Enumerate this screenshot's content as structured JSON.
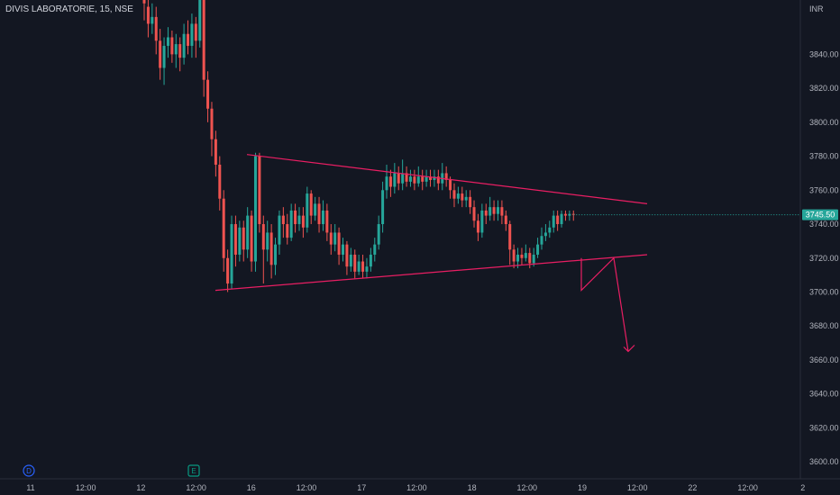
{
  "header": {
    "symbol_title": "DIVIS LABORATORIE, 15, NSE"
  },
  "price_axis": {
    "currency": "INR",
    "last_price_label": "3745.50"
  },
  "event_markers": [
    {
      "label": "D",
      "color": "#2962ff"
    },
    {
      "label": "E",
      "color": "#089981"
    }
  ],
  "colors": {
    "background": "#131722",
    "up": "#26a69a",
    "down": "#ef5350",
    "drawing": "#e91e63",
    "last_price_bg": "#26a69a"
  },
  "chart_data": {
    "type": "candlestick",
    "ylim": [
      3590,
      3872
    ],
    "y_ticks": [
      "3840.00",
      "3820.00",
      "3800.00",
      "3780.00",
      "3760.00",
      "3740.00",
      "3720.00",
      "3700.00",
      "3680.00",
      "3660.00",
      "3640.00",
      "3620.00",
      "3600.00"
    ],
    "x_ticks": [
      "11",
      "12:00",
      "12",
      "12:00",
      "16",
      "12:00",
      "17",
      "12:00",
      "18",
      "12:00",
      "19",
      "12:00",
      "22",
      "12:00",
      "2"
    ],
    "drawings": [
      {
        "name": "upper-trendline",
        "from": [
          3781,
          0
        ],
        "to": [
          3752,
          1
        ]
      },
      {
        "name": "lower-trendline",
        "from": [
          3701,
          0
        ],
        "to": [
          3722,
          1
        ]
      },
      {
        "name": "projection-arrow",
        "points": [
          3720,
          3701,
          3720,
          3665
        ]
      }
    ],
    "last_price": 3745.5,
    "candles": [
      [
        3925,
        3870,
        3935,
        3860
      ],
      [
        3868,
        3858,
        3878,
        3850
      ],
      [
        3858,
        3862,
        3870,
        3852
      ],
      [
        3862,
        3848,
        3868,
        3840
      ],
      [
        3848,
        3832,
        3855,
        3825
      ],
      [
        3832,
        3845,
        3850,
        3822
      ],
      [
        3845,
        3850,
        3856,
        3838
      ],
      [
        3850,
        3840,
        3854,
        3835
      ],
      [
        3840,
        3846,
        3852,
        3832
      ],
      [
        3846,
        3838,
        3850,
        3830
      ],
      [
        3838,
        3852,
        3858,
        3834
      ],
      [
        3852,
        3845,
        3860,
        3840
      ],
      [
        3845,
        3858,
        3864,
        3838
      ],
      [
        3858,
        3848,
        3862,
        3838
      ],
      [
        3848,
        3872,
        3878,
        3844
      ],
      [
        3872,
        3825,
        3872,
        3815
      ],
      [
        3825,
        3808,
        3830,
        3800
      ],
      [
        3808,
        3790,
        3812,
        3780
      ],
      [
        3790,
        3775,
        3795,
        3768
      ],
      [
        3775,
        3755,
        3780,
        3748
      ],
      [
        3755,
        3720,
        3760,
        3712
      ],
      [
        3720,
        3705,
        3725,
        3700
      ],
      [
        3705,
        3740,
        3745,
        3702
      ],
      [
        3740,
        3722,
        3745,
        3715
      ],
      [
        3722,
        3738,
        3742,
        3718
      ],
      [
        3738,
        3725,
        3742,
        3718
      ],
      [
        3725,
        3745,
        3750,
        3720
      ],
      [
        3745,
        3718,
        3748,
        3712
      ],
      [
        3718,
        3780,
        3782,
        3712
      ],
      [
        3780,
        3740,
        3782,
        3735
      ],
      [
        3740,
        3725,
        3745,
        3705
      ],
      [
        3725,
        3735,
        3742,
        3718
      ],
      [
        3735,
        3716,
        3740,
        3708
      ],
      [
        3716,
        3728,
        3732,
        3710
      ],
      [
        3728,
        3745,
        3748,
        3722
      ],
      [
        3745,
        3740,
        3750,
        3732
      ],
      [
        3740,
        3732,
        3746,
        3728
      ],
      [
        3732,
        3748,
        3752,
        3730
      ],
      [
        3748,
        3740,
        3752,
        3735
      ],
      [
        3740,
        3745,
        3750,
        3736
      ],
      [
        3745,
        3738,
        3750,
        3732
      ],
      [
        3738,
        3758,
        3762,
        3735
      ],
      [
        3758,
        3745,
        3760,
        3740
      ],
      [
        3745,
        3752,
        3756,
        3742
      ],
      [
        3752,
        3740,
        3756,
        3735
      ],
      [
        3740,
        3748,
        3754,
        3736
      ],
      [
        3748,
        3735,
        3752,
        3730
      ],
      [
        3735,
        3728,
        3740,
        3722
      ],
      [
        3728,
        3735,
        3740,
        3724
      ],
      [
        3735,
        3722,
        3738,
        3716
      ],
      [
        3722,
        3728,
        3732,
        3718
      ],
      [
        3728,
        3715,
        3730,
        3710
      ],
      [
        3715,
        3722,
        3726,
        3712
      ],
      [
        3722,
        3712,
        3725,
        3708
      ],
      [
        3712,
        3718,
        3722,
        3710
      ],
      [
        3718,
        3712,
        3722,
        3708
      ],
      [
        3712,
        3715,
        3720,
        3708
      ],
      [
        3715,
        3722,
        3726,
        3712
      ],
      [
        3722,
        3728,
        3732,
        3718
      ],
      [
        3728,
        3740,
        3745,
        3725
      ],
      [
        3740,
        3760,
        3765,
        3735
      ],
      [
        3760,
        3768,
        3775,
        3755
      ],
      [
        3768,
        3762,
        3772,
        3756
      ],
      [
        3762,
        3770,
        3776,
        3758
      ],
      [
        3770,
        3764,
        3774,
        3760
      ],
      [
        3764,
        3770,
        3778,
        3760
      ],
      [
        3770,
        3765,
        3774,
        3762
      ],
      [
        3765,
        3768,
        3772,
        3762
      ],
      [
        3768,
        3764,
        3772,
        3760
      ],
      [
        3764,
        3768,
        3774,
        3762
      ],
      [
        3768,
        3765,
        3772,
        3760
      ],
      [
        3765,
        3768,
        3772,
        3762
      ],
      [
        3768,
        3766,
        3772,
        3762
      ],
      [
        3766,
        3768,
        3772,
        3762
      ],
      [
        3768,
        3764,
        3772,
        3760
      ],
      [
        3764,
        3770,
        3776,
        3760
      ],
      [
        3770,
        3766,
        3774,
        3762
      ],
      [
        3766,
        3760,
        3768,
        3755
      ],
      [
        3760,
        3755,
        3764,
        3750
      ],
      [
        3755,
        3758,
        3762,
        3752
      ],
      [
        3758,
        3754,
        3762,
        3750
      ],
      [
        3754,
        3756,
        3760,
        3750
      ],
      [
        3756,
        3750,
        3760,
        3746
      ],
      [
        3750,
        3742,
        3754,
        3738
      ],
      [
        3742,
        3735,
        3746,
        3730
      ],
      [
        3735,
        3748,
        3752,
        3732
      ],
      [
        3748,
        3745,
        3752,
        3740
      ],
      [
        3745,
        3750,
        3756,
        3742
      ],
      [
        3750,
        3746,
        3754,
        3742
      ],
      [
        3746,
        3750,
        3754,
        3742
      ],
      [
        3750,
        3745,
        3754,
        3740
      ],
      [
        3745,
        3740,
        3748,
        3736
      ],
      [
        3740,
        3725,
        3742,
        3716
      ],
      [
        3725,
        3718,
        3728,
        3714
      ],
      [
        3718,
        3722,
        3726,
        3714
      ],
      [
        3722,
        3720,
        3726,
        3716
      ],
      [
        3720,
        3723,
        3728,
        3718
      ],
      [
        3723,
        3717,
        3726,
        3714
      ],
      [
        3717,
        3722,
        3726,
        3715
      ],
      [
        3722,
        3728,
        3732,
        3720
      ],
      [
        3728,
        3733,
        3738,
        3725
      ],
      [
        3733,
        3735,
        3740,
        3730
      ],
      [
        3735,
        3738,
        3742,
        3732
      ],
      [
        3738,
        3745,
        3748,
        3735
      ],
      [
        3745,
        3740,
        3748,
        3736
      ],
      [
        3740,
        3746,
        3748,
        3738
      ],
      [
        3746,
        3745,
        3748,
        3742
      ],
      [
        3745,
        3746,
        3748,
        3742
      ],
      [
        3746,
        3745.5,
        3748,
        3742
      ]
    ]
  }
}
